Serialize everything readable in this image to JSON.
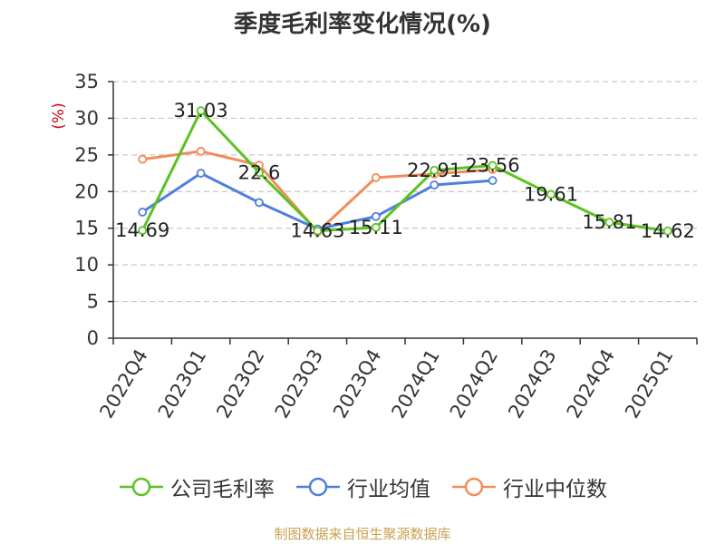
{
  "title": "季度毛利率变化情况(%)",
  "source": "制图数据来自恒生聚源数据库",
  "colors": {
    "company": "#5ac322",
    "industry_avg": "#4f7fdd",
    "industry_median": "#f28c59",
    "axis": "#333333",
    "grid": "#c8c8c8",
    "ylabel": "#d0021b",
    "source": "#c8a152"
  },
  "chart_data": {
    "type": "line",
    "title": "季度毛利率变化情况(%)",
    "ylabel": "(%)",
    "xlabel": "",
    "ylim": [
      0,
      35
    ],
    "yticks": [
      0,
      5,
      10,
      15,
      20,
      25,
      30,
      35
    ],
    "grid": true,
    "legend_position": "bottom",
    "categories": [
      "2022Q4",
      "2023Q1",
      "2023Q2",
      "2023Q3",
      "2023Q4",
      "2024Q1",
      "2024Q2",
      "2024Q3",
      "2024Q4",
      "2025Q1"
    ],
    "series": [
      {
        "name": "公司毛利率",
        "color": "#5ac322",
        "values": [
          14.69,
          31.03,
          22.6,
          14.63,
          15.11,
          22.91,
          23.56,
          19.61,
          15.81,
          14.62
        ],
        "labels": [
          "14.69",
          "31.03",
          "22.6",
          "14.63",
          "15.11",
          "22.91",
          "23.56",
          "19.61",
          "15.81",
          "14.62"
        ]
      },
      {
        "name": "行业均值",
        "color": "#4f7fdd",
        "values": [
          17.2,
          22.5,
          18.5,
          14.9,
          16.6,
          20.9,
          21.5,
          null,
          null,
          null
        ]
      },
      {
        "name": "行业中位数",
        "color": "#f28c59",
        "values": [
          24.4,
          25.5,
          23.6,
          14.5,
          21.9,
          22.4,
          23.0,
          null,
          null,
          null
        ]
      }
    ]
  }
}
